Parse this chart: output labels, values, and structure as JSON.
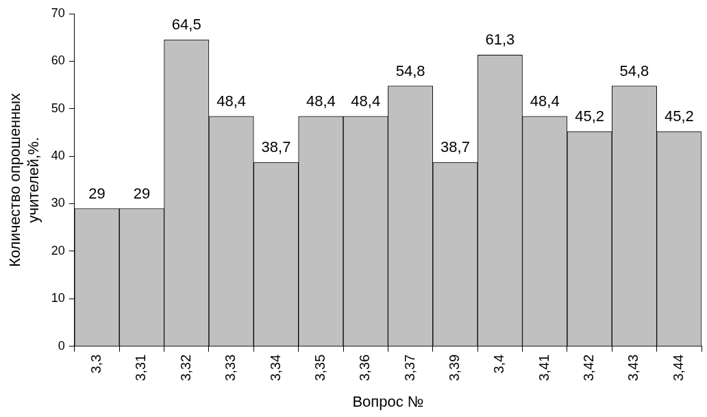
{
  "chart_data": {
    "type": "bar",
    "xlabel": "Вопрос №",
    "ylabel": "Количество опрошенных учителей,%.",
    "categories": [
      "3,3",
      "3,31",
      "3,32",
      "3,33",
      "3,34",
      "3,35",
      "3,36",
      "3,37",
      "3,39",
      "3,4",
      "3,41",
      "3,42",
      "3,43",
      "3,44"
    ],
    "values": [
      29,
      29,
      64.5,
      48.4,
      38.7,
      48.4,
      48.4,
      54.8,
      38.7,
      61.3,
      48.4,
      45.2,
      54.8,
      45.2
    ],
    "value_labels": [
      "29",
      "29",
      "64,5",
      "48,4",
      "38,7",
      "48,4",
      "48,4",
      "54,8",
      "38,7",
      "61,3",
      "48,4",
      "45,2",
      "54,8",
      "45,2"
    ],
    "color": "#c0c0c0",
    "ylim": [
      0,
      70
    ],
    "yticks": [
      0,
      10,
      20,
      30,
      40,
      50,
      60,
      70
    ]
  }
}
